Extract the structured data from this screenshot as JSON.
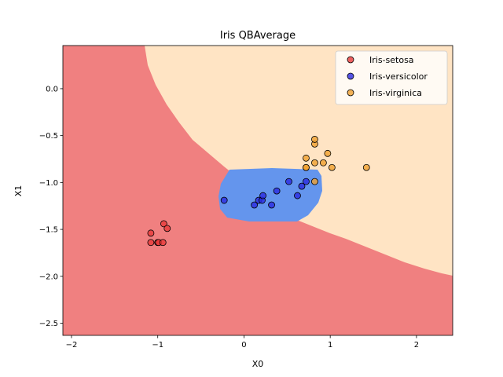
{
  "chart_data": {
    "type": "scatter",
    "title": "Iris QBAverage",
    "xlabel": "X0",
    "ylabel": "X1",
    "xlim": [
      -2.1,
      2.42
    ],
    "ylim": [
      -2.63,
      0.46
    ],
    "xticks": [
      {
        "v": -2,
        "label": "−2"
      },
      {
        "v": -1,
        "label": "−1"
      },
      {
        "v": 0,
        "label": "0"
      },
      {
        "v": 1,
        "label": "1"
      },
      {
        "v": 2,
        "label": "2"
      }
    ],
    "yticks": [
      {
        "v": 0.0,
        "label": "0.0"
      },
      {
        "v": -0.5,
        "label": "−0.5"
      },
      {
        "v": -1.0,
        "label": "−1.0"
      },
      {
        "v": -1.5,
        "label": "−1.5"
      },
      {
        "v": -2.0,
        "label": "−2.0"
      },
      {
        "v": -2.5,
        "label": "−2.5"
      }
    ],
    "grid": false,
    "legend_position": "top-right",
    "region_colors": {
      "Iris-setosa": "#f08080",
      "Iris-versicolor": "#6495ed",
      "Iris-virginica": "#ffe4c4"
    },
    "series": [
      {
        "name": "Iris-setosa",
        "color": "#e83a3a",
        "points": [
          [
            -1.08,
            -1.54
          ],
          [
            -1.08,
            -1.64
          ],
          [
            -1.0,
            -1.64
          ],
          [
            -0.99,
            -1.64
          ],
          [
            -0.94,
            -1.64
          ],
          [
            -0.93,
            -1.44
          ],
          [
            -0.89,
            -1.49
          ]
        ]
      },
      {
        "name": "Iris-versicolor",
        "color": "#2a2ae0",
        "points": [
          [
            -0.23,
            -1.19
          ],
          [
            0.12,
            -1.24
          ],
          [
            0.17,
            -1.19
          ],
          [
            0.21,
            -1.19
          ],
          [
            0.22,
            -1.14
          ],
          [
            0.32,
            -1.24
          ],
          [
            0.38,
            -1.09
          ],
          [
            0.52,
            -0.99
          ],
          [
            0.62,
            -1.14
          ],
          [
            0.67,
            -1.04
          ],
          [
            0.72,
            -0.99
          ]
        ]
      },
      {
        "name": "Iris-virginica",
        "color": "#f0a030",
        "points": [
          [
            0.72,
            -0.74
          ],
          [
            0.72,
            -0.84
          ],
          [
            0.72,
            -0.84
          ],
          [
            0.82,
            -0.99
          ],
          [
            0.82,
            -0.79
          ],
          [
            0.82,
            -0.59
          ],
          [
            0.82,
            -0.54
          ],
          [
            0.92,
            -0.79
          ],
          [
            0.97,
            -0.69
          ],
          [
            1.02,
            -0.84
          ],
          [
            1.42,
            -0.84
          ]
        ]
      }
    ]
  }
}
